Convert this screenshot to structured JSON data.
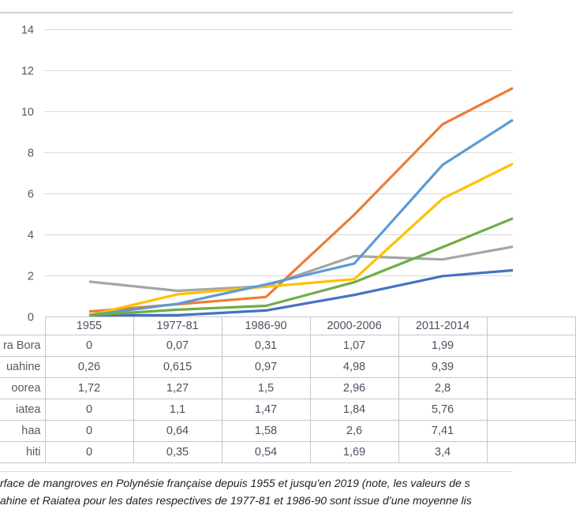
{
  "chart_data": {
    "type": "line",
    "title": "",
    "xlabel": "",
    "ylabel": "",
    "categories": [
      "1955",
      "1977-81",
      "1986-90",
      "2000-2006",
      "2011-2014"
    ],
    "series": [
      {
        "name": "ra Bora",
        "color": "#4472C4",
        "values": [
          0,
          0.07,
          0.31,
          1.07,
          1.99
        ],
        "value_at_right_edge": 2.27
      },
      {
        "name": "uahine",
        "color": "#ED7D31",
        "values": [
          0.26,
          0.615,
          0.97,
          4.98,
          9.39
        ],
        "value_at_right_edge": 11.15
      },
      {
        "name": "oorea",
        "color": "#A5A5A5",
        "values": [
          1.72,
          1.27,
          1.5,
          2.96,
          2.8
        ],
        "value_at_right_edge": 3.42
      },
      {
        "name": "iatea",
        "color": "#FFC000",
        "values": [
          0,
          1.1,
          1.47,
          1.84,
          5.76
        ],
        "value_at_right_edge": 7.46
      },
      {
        "name": "haa",
        "color": "#5B9BD5",
        "values": [
          0,
          0.64,
          1.58,
          2.6,
          7.41
        ],
        "value_at_right_edge": 9.6
      },
      {
        "name": "hiti",
        "color": "#70AD47",
        "values": [
          0,
          0.35,
          0.54,
          1.69,
          3.4
        ],
        "value_at_right_edge": 4.8
      }
    ],
    "ylim": [
      0,
      14
    ],
    "yticks": [
      0,
      2,
      4,
      6,
      8,
      10,
      12,
      14
    ],
    "grid": true,
    "legend_position": "none",
    "note": "lines continue past the cropped right edge of the image toward an off-screen 2019 category"
  },
  "table": {
    "column_headers": [
      "1955",
      "1977-81",
      "1986-90",
      "2000-2006",
      "2011-2014",
      ""
    ],
    "rows": [
      {
        "label": "ra Bora",
        "cells": [
          "0",
          "0,07",
          "0,31",
          "1,07",
          "1,99",
          ""
        ]
      },
      {
        "label": "uahine",
        "cells": [
          "0,26",
          "0,615",
          "0,97",
          "4,98",
          "9,39",
          ""
        ]
      },
      {
        "label": "oorea",
        "cells": [
          "1,72",
          "1,27",
          "1,5",
          "2,96",
          "2,8",
          ""
        ]
      },
      {
        "label": "iatea",
        "cells": [
          "0",
          "1,1",
          "1,47",
          "1,84",
          "5,76",
          ""
        ]
      },
      {
        "label": "haa",
        "cells": [
          "0",
          "0,64",
          "1,58",
          "2,6",
          "7,41",
          ""
        ]
      },
      {
        "label": "hiti",
        "cells": [
          "0",
          "0,35",
          "0,54",
          "1,69",
          "3,4",
          ""
        ]
      }
    ]
  },
  "caption": {
    "line1": "rface de mangroves en Polynésie française depuis 1955 et jusqu'en 2019 (note, les valeurs de s",
    "line2": "ahine et Raiatea pour les dates respectives de 1977-81 et 1986-90 sont issue d’une moyenne lis"
  },
  "colors": {
    "gridline": "#d9d9d9",
    "axis_label_text": "#595959",
    "table_border": "#c6c6c6",
    "table_text": "#4a5160",
    "caption_text": "#1f1f1f",
    "separator_rule": "#d3d3d3"
  }
}
